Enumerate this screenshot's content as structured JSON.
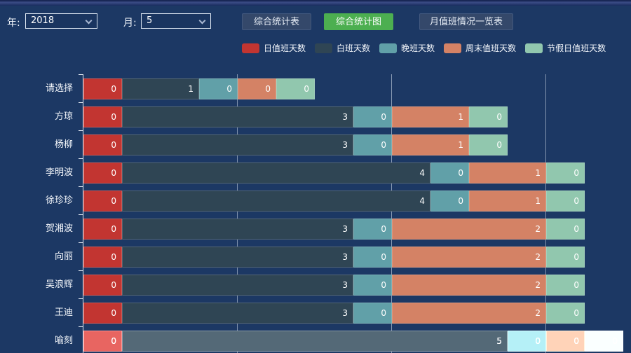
{
  "app": {
    "background_color": "#1c3864"
  },
  "toolbar": {
    "year_label": "年:",
    "year_value": "2018",
    "month_label": "月:",
    "month_value": "5",
    "buttons": [
      {
        "id": "summary-table",
        "label": "综合统计表",
        "active": false
      },
      {
        "id": "summary-chart",
        "label": "综合统计图",
        "active": true
      },
      {
        "id": "month-duty-list",
        "label": "月值班情况一览表",
        "active": false
      }
    ],
    "active_button_color": "#4caf50"
  },
  "chart_data": {
    "type": "bar",
    "orientation": "horizontal",
    "stacked": true,
    "categories": [
      "请选择",
      "方琼",
      "杨柳",
      "李明波",
      "徐珍珍",
      "贺湘波",
      "向丽",
      "吴浪辉",
      "王迪",
      "喻刻"
    ],
    "series": [
      {
        "name": "日值班天数",
        "color": "#c23531",
        "values": [
          0,
          0,
          0,
          0,
          0,
          0,
          0,
          0,
          0,
          0
        ]
      },
      {
        "name": "白班天数",
        "color": "#2f4554",
        "values": [
          1,
          3,
          3,
          4,
          4,
          3,
          3,
          3,
          3,
          5
        ]
      },
      {
        "name": "晚班天数",
        "color": "#61a0a8",
        "values": [
          0,
          0,
          0,
          0,
          0,
          0,
          0,
          0,
          0,
          0
        ]
      },
      {
        "name": "周末值班天数",
        "color": "#d48265",
        "values": [
          0,
          1,
          1,
          1,
          1,
          2,
          2,
          2,
          2,
          0
        ]
      },
      {
        "name": "节假日值班天数",
        "color": "#91c7ae",
        "values": [
          0,
          0,
          0,
          0,
          0,
          0,
          0,
          0,
          0,
          0
        ]
      }
    ],
    "xlim": [
      0,
      7
    ],
    "gridline_values": [
      2,
      4,
      6
    ],
    "zero_min_units": 0.5,
    "value_labels": "insideRight",
    "legend_position": "top",
    "grid_on": true,
    "highlighted_category": "喻刻",
    "title": "",
    "xlabel": "",
    "ylabel": ""
  }
}
